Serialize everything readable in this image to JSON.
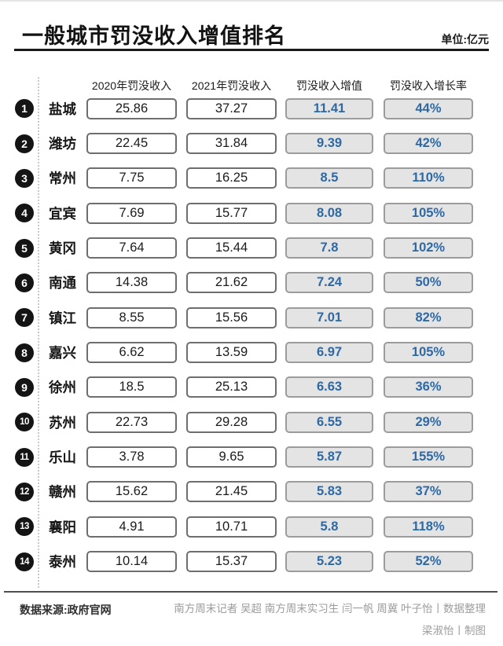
{
  "header": {
    "title": "一般城市罚没收入增值排名",
    "unit_label": "单位:亿元"
  },
  "footer": {
    "source": "数据来源:政府官网",
    "credit_line1": "南方周末记者 吴超 南方周末实习生 闫一帆 周冀 叶子怡丨数据整理",
    "credit_line2": "梁淑怡丨制图"
  },
  "colors": {
    "accent_blue": "#2F69A3",
    "box_gray_fill": "#E4E4E4",
    "box_gray_border": "#9C9C9C",
    "box_white_border": "#6E6E6E",
    "rank_badge": "#141414",
    "rule_black": "#1A1A1A"
  },
  "chart_data": {
    "type": "table",
    "title": "一般城市罚没收入增值排名",
    "unit": "亿元",
    "columns": [
      "城市",
      "2020年罚没收入",
      "2021年罚没收入",
      "罚没收入增值",
      "罚没收入增长率"
    ],
    "rows": [
      {
        "rank": 1,
        "city": "盐城",
        "y2020": 25.86,
        "y2021": 37.27,
        "increase": 11.41,
        "growth_rate": "44%"
      },
      {
        "rank": 2,
        "city": "潍坊",
        "y2020": 22.45,
        "y2021": 31.84,
        "increase": 9.39,
        "growth_rate": "42%"
      },
      {
        "rank": 3,
        "city": "常州",
        "y2020": 7.75,
        "y2021": 16.25,
        "increase": 8.5,
        "growth_rate": "110%"
      },
      {
        "rank": 4,
        "city": "宜宾",
        "y2020": 7.69,
        "y2021": 15.77,
        "increase": 8.08,
        "growth_rate": "105%"
      },
      {
        "rank": 5,
        "city": "黄冈",
        "y2020": 7.64,
        "y2021": 15.44,
        "increase": 7.8,
        "growth_rate": "102%"
      },
      {
        "rank": 6,
        "city": "南通",
        "y2020": 14.38,
        "y2021": 21.62,
        "increase": 7.24,
        "growth_rate": "50%"
      },
      {
        "rank": 7,
        "city": "镇江",
        "y2020": 8.55,
        "y2021": 15.56,
        "increase": 7.01,
        "growth_rate": "82%"
      },
      {
        "rank": 8,
        "city": "嘉兴",
        "y2020": 6.62,
        "y2021": 13.59,
        "increase": 6.97,
        "growth_rate": "105%"
      },
      {
        "rank": 9,
        "city": "徐州",
        "y2020": 18.5,
        "y2021": 25.13,
        "increase": 6.63,
        "growth_rate": "36%"
      },
      {
        "rank": 10,
        "city": "苏州",
        "y2020": 22.73,
        "y2021": 29.28,
        "increase": 6.55,
        "growth_rate": "29%"
      },
      {
        "rank": 11,
        "city": "乐山",
        "y2020": 3.78,
        "y2021": 9.65,
        "increase": 5.87,
        "growth_rate": "155%"
      },
      {
        "rank": 12,
        "city": "赣州",
        "y2020": 15.62,
        "y2021": 21.45,
        "increase": 5.83,
        "growth_rate": "37%"
      },
      {
        "rank": 13,
        "city": "襄阳",
        "y2020": 4.91,
        "y2021": 10.71,
        "increase": 5.8,
        "growth_rate": "118%"
      },
      {
        "rank": 14,
        "city": "泰州",
        "y2020": 10.14,
        "y2021": 15.37,
        "increase": 5.23,
        "growth_rate": "52%"
      }
    ]
  }
}
